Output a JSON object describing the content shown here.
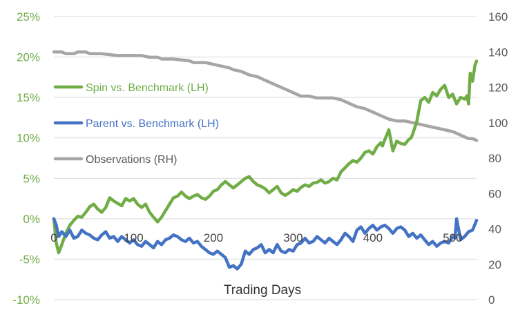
{
  "chart_data": {
    "type": "line",
    "title": "",
    "xlabel": "Trading Days",
    "ylabel_left": "",
    "ylabel_right": "",
    "xlim": [
      0,
      530
    ],
    "ylim_left": [
      -10,
      25
    ],
    "ylim_right": [
      0,
      160
    ],
    "x_ticks": [
      "0",
      "100",
      "200",
      "300",
      "400",
      "500"
    ],
    "y_left_ticks": [
      "25%",
      "20%",
      "15%",
      "10%",
      "5%",
      "0%",
      "-5%",
      "-10%"
    ],
    "y_right_ticks": [
      "160",
      "140",
      "120",
      "100",
      "80",
      "60",
      "40",
      "20",
      "0"
    ],
    "grid": "horizontal",
    "legend_position": "left",
    "colors": {
      "spin": "#70ad47",
      "parent": "#4472c4",
      "observations": "#a6a6a6",
      "left_axis_labels": "#70ad47",
      "right_axis_labels": "#595959",
      "grid": "#d9d9d9"
    },
    "series": [
      {
        "name": "Spin vs. Benchmark (LH)",
        "axis": "left",
        "x": [
          0,
          3,
          6,
          10,
          15,
          20,
          25,
          30,
          35,
          40,
          45,
          50,
          55,
          60,
          65,
          70,
          75,
          80,
          85,
          90,
          95,
          100,
          105,
          110,
          115,
          120,
          125,
          130,
          135,
          140,
          145,
          150,
          155,
          160,
          165,
          170,
          175,
          180,
          185,
          190,
          195,
          200,
          205,
          210,
          215,
          220,
          225,
          230,
          235,
          240,
          245,
          250,
          255,
          260,
          265,
          270,
          275,
          280,
          285,
          290,
          295,
          300,
          305,
          310,
          315,
          320,
          325,
          330,
          335,
          340,
          345,
          350,
          355,
          360,
          365,
          370,
          375,
          380,
          385,
          390,
          395,
          400,
          405,
          410,
          412,
          415,
          420,
          425,
          430,
          435,
          440,
          445,
          448,
          450,
          455,
          460,
          465,
          470,
          475,
          480,
          485,
          490,
          495,
          500,
          505,
          510,
          515,
          518,
          520,
          522,
          525,
          528,
          530
        ],
        "values": [
          0.0,
          -3.0,
          -4.2,
          -3.2,
          -1.8,
          -0.8,
          -0.2,
          0.3,
          0.2,
          0.8,
          1.5,
          1.8,
          1.2,
          0.8,
          1.4,
          2.6,
          2.2,
          1.9,
          1.6,
          2.5,
          2.2,
          2.5,
          1.8,
          1.4,
          1.8,
          0.8,
          0.2,
          -0.4,
          0.2,
          1.0,
          1.8,
          2.6,
          2.8,
          3.3,
          2.8,
          2.5,
          2.8,
          3.0,
          2.6,
          2.4,
          2.8,
          3.4,
          3.6,
          4.2,
          4.6,
          4.2,
          3.8,
          4.2,
          4.6,
          5.0,
          5.2,
          4.6,
          4.2,
          4.0,
          3.7,
          3.2,
          3.6,
          4.0,
          3.2,
          2.9,
          3.2,
          3.6,
          3.4,
          3.9,
          4.2,
          4.0,
          4.4,
          4.5,
          4.8,
          4.4,
          4.6,
          5.0,
          4.8,
          5.8,
          6.3,
          6.8,
          7.2,
          7.0,
          7.5,
          8.2,
          8.4,
          8.0,
          8.9,
          9.4,
          9.0,
          9.8,
          11.0,
          8.4,
          9.6,
          9.3,
          9.2,
          9.8,
          10.0,
          10.5,
          12.0,
          14.6,
          15.0,
          14.4,
          15.6,
          15.2,
          16.0,
          16.5,
          15.0,
          15.4,
          14.2,
          15.0,
          14.8,
          15.2,
          14.2,
          18.0,
          17.0,
          19.0,
          19.5
        ]
      },
      {
        "name": "Parent vs. Benchmark (LH)",
        "axis": "left",
        "x": [
          0,
          3,
          6,
          10,
          15,
          20,
          25,
          30,
          35,
          40,
          45,
          50,
          55,
          60,
          65,
          70,
          75,
          80,
          85,
          90,
          95,
          100,
          105,
          110,
          115,
          120,
          125,
          130,
          135,
          140,
          145,
          150,
          155,
          160,
          165,
          170,
          175,
          180,
          185,
          190,
          195,
          200,
          205,
          210,
          215,
          220,
          225,
          230,
          235,
          240,
          245,
          250,
          255,
          260,
          265,
          270,
          275,
          280,
          285,
          290,
          295,
          300,
          305,
          310,
          315,
          320,
          325,
          330,
          335,
          340,
          345,
          350,
          355,
          360,
          365,
          370,
          375,
          380,
          385,
          390,
          395,
          400,
          405,
          410,
          415,
          420,
          425,
          430,
          435,
          440,
          445,
          450,
          455,
          460,
          465,
          470,
          475,
          480,
          485,
          490,
          495,
          500,
          503,
          505,
          510,
          515,
          520,
          525,
          530
        ],
        "values": [
          0.0,
          -0.8,
          -2.2,
          -1.6,
          -2.2,
          -1.4,
          -2.4,
          -2.2,
          -1.4,
          -1.8,
          -2.0,
          -2.4,
          -2.6,
          -2.0,
          -1.6,
          -2.4,
          -2.2,
          -2.8,
          -2.2,
          -2.6,
          -3.0,
          -2.6,
          -3.2,
          -3.4,
          -2.8,
          -3.2,
          -3.6,
          -2.8,
          -3.2,
          -2.6,
          -2.4,
          -2.0,
          -2.2,
          -2.6,
          -2.8,
          -2.4,
          -3.0,
          -2.8,
          -3.4,
          -3.8,
          -4.2,
          -4.4,
          -4.0,
          -4.4,
          -4.8,
          -6.0,
          -5.8,
          -6.2,
          -5.6,
          -4.0,
          -4.4,
          -3.8,
          -3.6,
          -3.2,
          -4.2,
          -3.8,
          -4.2,
          -3.2,
          -4.0,
          -4.2,
          -3.8,
          -4.0,
          -3.2,
          -3.0,
          -2.4,
          -3.0,
          -2.8,
          -2.2,
          -2.6,
          -3.0,
          -2.4,
          -2.8,
          -3.2,
          -2.6,
          -1.8,
          -2.2,
          -2.8,
          -1.4,
          -1.0,
          -1.8,
          -1.2,
          -0.8,
          -1.4,
          -1.0,
          -0.8,
          -1.2,
          -1.8,
          -1.2,
          -1.0,
          -1.4,
          -2.2,
          -1.8,
          -2.4,
          -2.0,
          -2.6,
          -3.2,
          -2.8,
          -3.4,
          -3.0,
          -2.8,
          -3.0,
          -2.2,
          -2.4,
          0.0,
          -2.6,
          -2.2,
          -1.6,
          -1.4,
          -0.2
        ]
      },
      {
        "name": "Observations (RH)",
        "axis": "right",
        "x": [
          0,
          10,
          15,
          25,
          30,
          40,
          45,
          60,
          80,
          110,
          120,
          130,
          135,
          150,
          170,
          175,
          190,
          200,
          220,
          225,
          235,
          245,
          255,
          265,
          275,
          285,
          295,
          310,
          320,
          330,
          340,
          350,
          360,
          370,
          380,
          390,
          400,
          410,
          420,
          430,
          440,
          450,
          460,
          470,
          480,
          490,
          500,
          510,
          520,
          525,
          530
        ],
        "values": [
          140,
          140,
          139,
          139,
          140,
          140,
          139,
          139,
          138,
          138,
          137,
          137,
          136,
          136,
          135,
          134,
          134,
          133,
          131,
          130,
          129,
          127,
          126,
          124,
          122,
          120,
          118,
          115,
          115,
          114,
          114,
          114,
          113,
          111,
          109,
          108,
          106,
          104,
          102,
          101,
          101,
          100,
          99,
          98,
          97,
          96,
          95,
          93,
          91,
          91,
          90
        ]
      }
    ]
  }
}
